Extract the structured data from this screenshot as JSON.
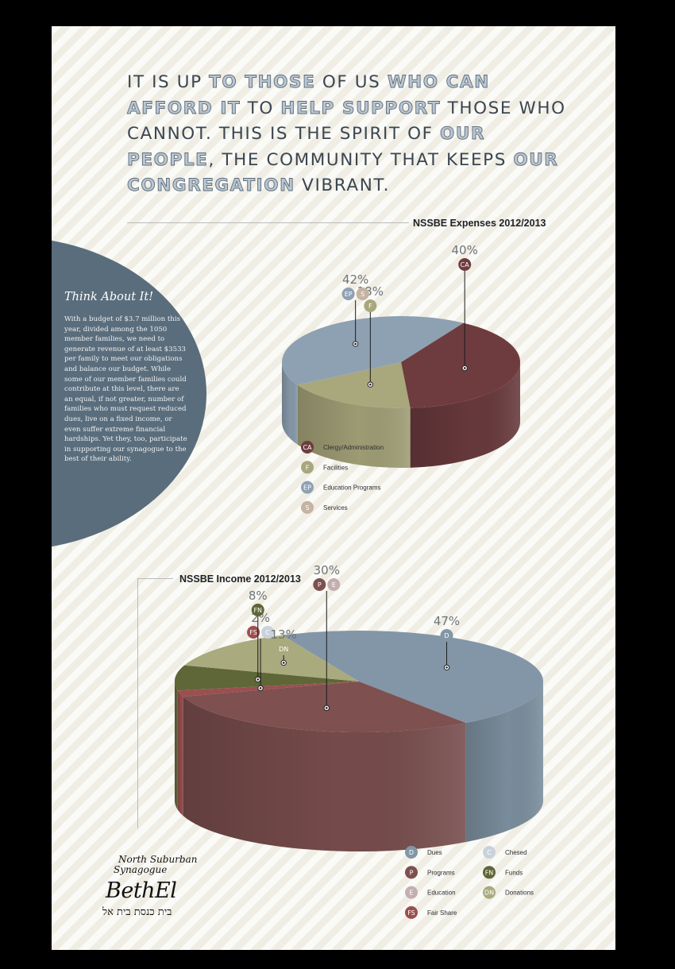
{
  "headline": [
    {
      "text": "IT IS UP ",
      "hl": false
    },
    {
      "text": "TO THOSE",
      "hl": true
    },
    {
      "text": " OF US ",
      "hl": false
    },
    {
      "text": "WHO CAN AFFORD IT",
      "hl": true
    },
    {
      "text": " TO ",
      "hl": false
    },
    {
      "text": "HELP SUPPORT",
      "hl": true
    },
    {
      "text": " THOSE WHO CANNOT. THIS IS THE SPIRIT OF ",
      "hl": false
    },
    {
      "text": "OUR PEOPLE",
      "hl": true
    },
    {
      "text": ", THE COMMUNITY THAT KEEPS ",
      "hl": false
    },
    {
      "text": "OUR CONGREGATION",
      "hl": true
    },
    {
      "text": " VIBRANT.",
      "hl": false
    }
  ],
  "sidebar": {
    "title": "Think About It!",
    "body": "With a budget of $3.7 million this year, divided among the 1050 member families, we need to generate revenue of at least $3533 per family to meet our obligations and balance our budget. While some of our member families could contribute at this level, there are an equal, if not greater, number of families who must request reduced dues, live on a fixed income, or even suffer extreme financial hardships. Yet they, too, participate in supporting our synagogue to the best of their ability."
  },
  "logo": {
    "line1": "North Suburban",
    "line2": "Synagogue",
    "name": "BethEl",
    "hebrew": "בית כנסת בית אל"
  },
  "chart_data": [
    {
      "type": "pie",
      "title": "NSSBE Expenses 2012/2013",
      "slices": [
        {
          "code": "CA",
          "label": "Clergy/Administration",
          "value": 40,
          "color": "#6e3c3f"
        },
        {
          "code": "F",
          "label": "Facilities",
          "value": 18,
          "color": "#a9a77c"
        },
        {
          "code": "EP",
          "label": "Education Programs",
          "value": 42,
          "color": "#8ea1b3"
        },
        {
          "code": "S",
          "label": "Services",
          "value": null,
          "color": "#c5b3a3"
        }
      ],
      "callouts": [
        {
          "value_label": "40%",
          "codes": [
            "CA"
          ]
        },
        {
          "value_label": "18%",
          "codes": [
            "F"
          ]
        },
        {
          "value_label": "42%",
          "codes": [
            "EP",
            "S"
          ]
        }
      ],
      "legend_position": "bottom-left"
    },
    {
      "type": "pie",
      "title": "NSSBE Income 2012/2013",
      "slices": [
        {
          "code": "D",
          "label": "Dues",
          "value": 47,
          "color": "#8296a7"
        },
        {
          "code": "P",
          "label": "Programs",
          "value": 30,
          "color": "#7e5050"
        },
        {
          "code": "E",
          "label": "Education",
          "value": null,
          "color": "#c5aeb0"
        },
        {
          "code": "FS",
          "label": "Fair Share",
          "value": 2,
          "color": "#9b4f50"
        },
        {
          "code": "C",
          "label": "Chesed",
          "value": null,
          "color": "#c9d2dc"
        },
        {
          "code": "FN",
          "label": "Funds",
          "value": 8,
          "color": "#5f6637"
        },
        {
          "code": "DN",
          "label": "Donations",
          "value": 13,
          "color": "#a9aa7d"
        }
      ],
      "callouts": [
        {
          "value_label": "47%",
          "codes": [
            "D"
          ]
        },
        {
          "value_label": "30%",
          "codes": [
            "P",
            "E"
          ]
        },
        {
          "value_label": "2%",
          "codes": [
            "FS",
            "C"
          ]
        },
        {
          "value_label": "8%",
          "codes": [
            "FN"
          ]
        },
        {
          "value_label": "13%",
          "codes": [
            "DN"
          ]
        }
      ],
      "legend_position": "bottom-right"
    }
  ]
}
